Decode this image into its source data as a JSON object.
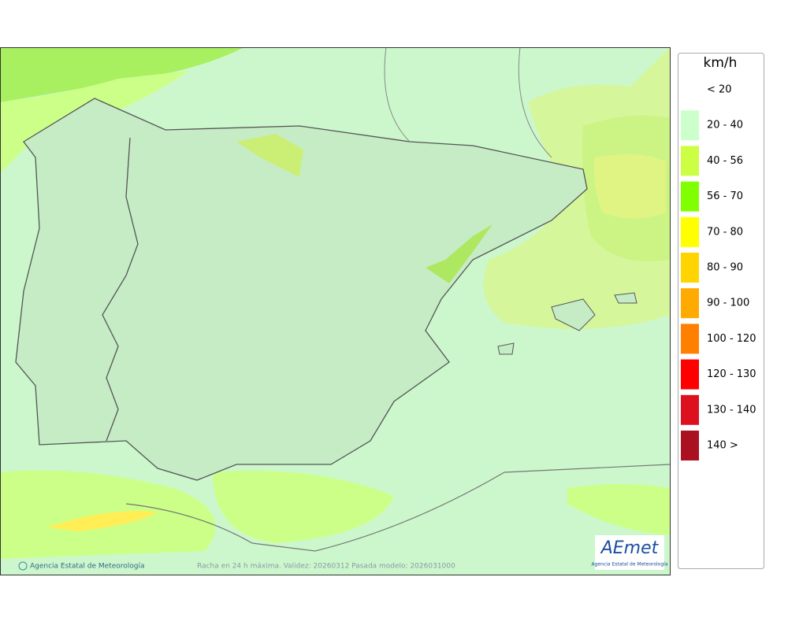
{
  "map": {
    "footer_credit": "Agencia Estatal de Meteorología",
    "footer_info": "Racha en 24 h máxima. Validez: 20260312 Pasada modelo: 2026031000",
    "logo": {
      "name": "AEmet",
      "subtitle": "Agencia Estatal de Meteorología"
    }
  },
  "legend": {
    "unit": "km/h",
    "items": [
      {
        "label": "< 20"
      },
      {
        "label": "20 - 40",
        "color": "#ccffcc"
      },
      {
        "label": "40 - 56",
        "color": "#ccff44"
      },
      {
        "label": "56 - 70",
        "color": "#80ff00"
      },
      {
        "label": "70 - 80",
        "color": "#ffff00"
      },
      {
        "label": "80 - 90",
        "color": "#ffd400"
      },
      {
        "label": "90 - 100",
        "color": "#ffaa00"
      },
      {
        "label": "100 - 120",
        "color": "#ff8000"
      },
      {
        "label": "120 - 130",
        "color": "#ff0000"
      },
      {
        "label": "130 - 140",
        "color": "#dd1020"
      },
      {
        "label": "140 >",
        "color": "#aa1020"
      }
    ]
  }
}
